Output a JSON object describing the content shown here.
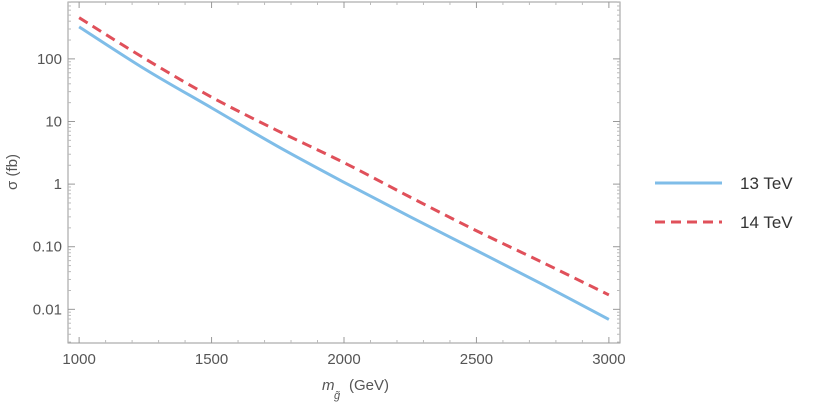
{
  "chart_data": {
    "type": "line",
    "xlabel_main": "m",
    "xlabel_sub": "g̃",
    "xlabel_unit": "(GeV)",
    "ylabel": "σ (fb)",
    "yscale": "log",
    "xlim": [
      958,
      3042
    ],
    "ylim": [
      0.0029,
      810
    ],
    "x_ticks": [
      1000,
      1500,
      2000,
      2500,
      3000
    ],
    "y_ticks": [
      {
        "v": 0.01,
        "label": "0.01"
      },
      {
        "v": 0.1,
        "label": "0.10"
      },
      {
        "v": 1,
        "label": "1"
      },
      {
        "v": 10,
        "label": "10"
      },
      {
        "v": 100,
        "label": "100"
      }
    ],
    "grid": false,
    "legend_position": "right",
    "x": [
      1000,
      1250,
      1500,
      1750,
      2000,
      2250,
      2500,
      2750,
      3000
    ],
    "series": [
      {
        "name": "13 TeV",
        "color": "#7fbde8",
        "dash": "solid",
        "values": [
          325,
          68,
          16.5,
          4.0,
          1.07,
          0.3,
          0.087,
          0.025,
          0.0069
        ]
      },
      {
        "name": "14 TeV",
        "color": "#e0505a",
        "dash": "dashed",
        "values": [
          455,
          100,
          24.5,
          7.1,
          2.2,
          0.62,
          0.18,
          0.056,
          0.017
        ]
      }
    ]
  }
}
